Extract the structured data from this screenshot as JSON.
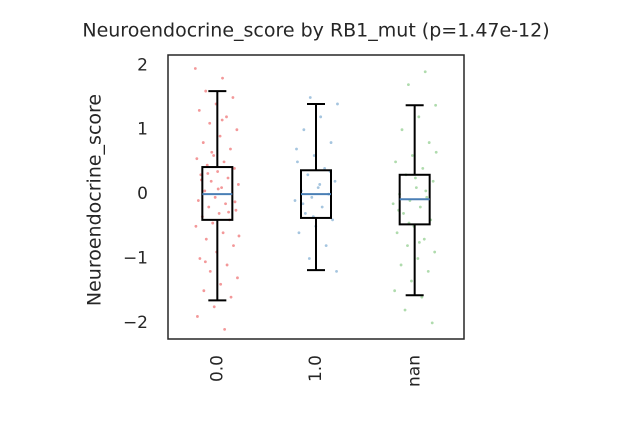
{
  "chart_data": {
    "type": "box",
    "title": "Neuroendocrine_score by RB1_mut  (p=1.47e-12)",
    "ylabel": "Neuroendocrine_score",
    "categories": [
      "0.0",
      "1.0",
      "nan"
    ],
    "colors": [
      "#e41a1c",
      "#377eb8",
      "#4daf4a"
    ],
    "median_color": "#4a7fb5",
    "ylim": [
      -2.25,
      2.16
    ],
    "yticks": [
      {
        "value": -2,
        "label": "−2"
      },
      {
        "value": -1,
        "label": "−1"
      },
      0,
      1,
      2
    ],
    "boxes": [
      {
        "whislo": -1.65,
        "q1": -0.4,
        "med": 0.0,
        "q3": 0.42,
        "whishi": 1.6
      },
      {
        "whislo": -1.18,
        "q1": -0.37,
        "med": 0.0,
        "q3": 0.37,
        "whishi": 1.4
      },
      {
        "whislo": -1.57,
        "q1": -0.47,
        "med": -0.08,
        "q3": 0.3,
        "whishi": 1.38
      }
    ],
    "points": [
      [
        1.95,
        1.8,
        1.6,
        1.5,
        1.4,
        1.3,
        1.2,
        1.1,
        1.0,
        0.9,
        0.8,
        0.7,
        0.6,
        0.55,
        0.5,
        0.45,
        0.4,
        0.35,
        0.3,
        0.25,
        0.2,
        0.15,
        0.1,
        0.05,
        0.0,
        -0.05,
        -0.1,
        -0.15,
        -0.2,
        -0.25,
        -0.3,
        -0.35,
        -0.4,
        -0.45,
        -0.5,
        -0.6,
        -0.7,
        -0.8,
        -0.9,
        -1.0,
        -1.1,
        -1.2,
        -1.3,
        -1.4,
        -1.5,
        -1.6,
        -1.75,
        -1.9,
        -2.1,
        0.32,
        -0.12,
        0.08,
        0.22,
        -0.28,
        0.65,
        -0.65,
        1.15,
        -1.05
      ],
      [
        1.5,
        1.4,
        1.2,
        1.0,
        0.8,
        0.6,
        0.5,
        0.4,
        0.3,
        0.2,
        0.1,
        0.05,
        0.0,
        -0.05,
        -0.1,
        -0.2,
        -0.3,
        -0.4,
        -0.5,
        -0.6,
        -0.8,
        -1.0,
        -1.2,
        0.15,
        -0.15,
        0.35,
        -0.35,
        0.7
      ],
      [
        1.9,
        1.7,
        1.38,
        1.2,
        1.0,
        0.8,
        0.6,
        0.5,
        0.4,
        0.3,
        0.2,
        0.1,
        0.0,
        -0.05,
        -0.1,
        -0.15,
        -0.2,
        -0.3,
        -0.4,
        -0.5,
        -0.6,
        -0.7,
        -0.8,
        -0.9,
        -1.0,
        -1.1,
        -1.2,
        -1.35,
        -1.5,
        -1.6,
        -1.8,
        -2.0,
        0.25,
        -0.25,
        0.05,
        -0.45,
        0.65,
        -0.75
      ]
    ]
  }
}
